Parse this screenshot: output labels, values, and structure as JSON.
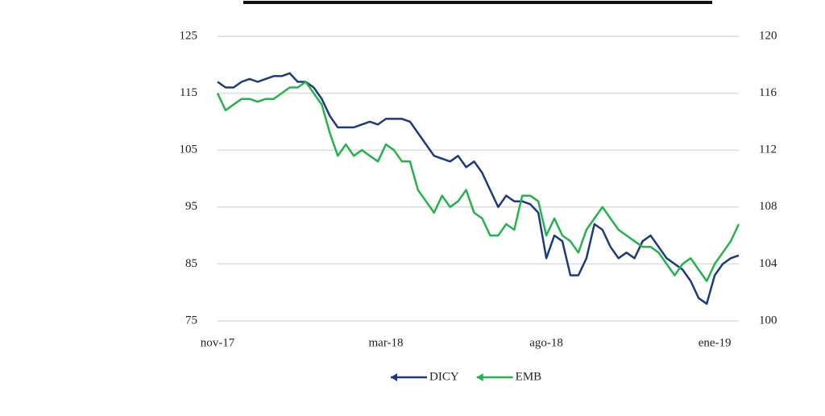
{
  "chart_data": {
    "type": "line",
    "categories": [
      "nov-17",
      null,
      null,
      null,
      null,
      null,
      null,
      null,
      null,
      null,
      null,
      null,
      null,
      null,
      null,
      null,
      null,
      null,
      null,
      null,
      null,
      "mar-18",
      null,
      null,
      null,
      null,
      null,
      null,
      null,
      null,
      null,
      null,
      null,
      null,
      null,
      null,
      null,
      null,
      null,
      null,
      null,
      "ago-18",
      null,
      null,
      null,
      null,
      null,
      null,
      null,
      null,
      null,
      null,
      null,
      null,
      null,
      null,
      null,
      null,
      null,
      null,
      null,
      null,
      "ene-19",
      null,
      null,
      null
    ],
    "series": [
      {
        "name": "DICY",
        "color": "#1c3a7e",
        "values": [
          117,
          116,
          116,
          117,
          117.5,
          117,
          117.5,
          118,
          118,
          118.5,
          117,
          117,
          116,
          114,
          111,
          109,
          109,
          109,
          109.5,
          110,
          109.5,
          110.5,
          110.5,
          110.5,
          110,
          108,
          106,
          104,
          103.5,
          103,
          104,
          102,
          103,
          101,
          98,
          95,
          97,
          96,
          96,
          95.5,
          94,
          86,
          90,
          89,
          83,
          83,
          86,
          92,
          91,
          88,
          86,
          87,
          86,
          89,
          90,
          88,
          86,
          85,
          84,
          82,
          79,
          78,
          83,
          85,
          86,
          86.5
        ]
      },
      {
        "name": "EMB",
        "color": "#24b34b",
        "axis": "y2",
        "values": [
          116,
          114.8,
          115.2,
          115.6,
          115.6,
          115.4,
          115.6,
          115.6,
          116,
          116.4,
          116.4,
          116.8,
          116,
          115.2,
          113.2,
          111.6,
          112.4,
          111.6,
          112,
          111.6,
          111.2,
          112.4,
          112,
          111.2,
          111.2,
          109.2,
          108.4,
          107.6,
          108.8,
          108,
          108.4,
          109.2,
          107.6,
          107.2,
          106,
          106,
          106.8,
          106.4,
          108.8,
          108.8,
          108.4,
          106,
          107.2,
          106,
          105.6,
          104.8,
          106.4,
          107.2,
          108,
          107.2,
          106.4,
          106,
          105.6,
          105.2,
          105.2,
          104.8,
          104,
          103.2,
          104,
          104.4,
          103.6,
          102.8,
          104,
          104.8,
          105.6,
          106.8
        ]
      }
    ],
    "ylim": [
      75,
      125
    ],
    "yticks": [
      75,
      85,
      95,
      105,
      115,
      125
    ],
    "y2lim": [
      100,
      120
    ],
    "y2ticks": [
      100,
      104,
      108,
      112,
      116,
      120
    ],
    "grid": true
  }
}
